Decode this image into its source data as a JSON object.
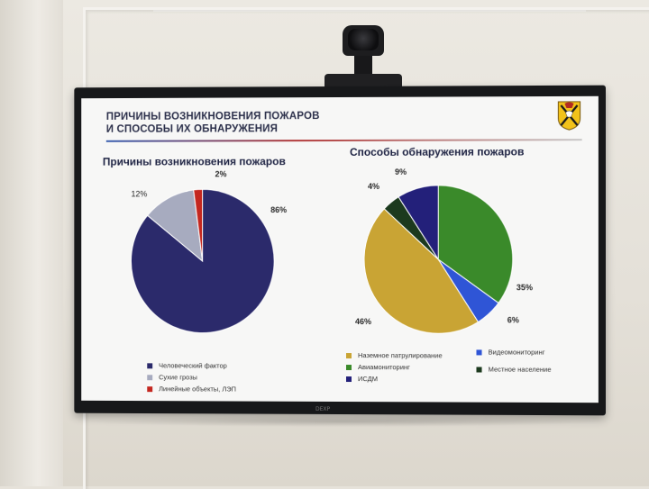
{
  "slide": {
    "title_line1": "ПРИЧИНЫ ВОЗНИКНОВЕНИЯ ПОЖАРОВ",
    "title_line2": "И СПОСОБЫ ИХ ОБНАРУЖЕНИЯ",
    "tv_brand": "DEXP"
  },
  "chart_data": [
    {
      "type": "pie",
      "title": "Причины возникновения пожаров",
      "categories": [
        "Человеческий фактор",
        "Сухие грозы",
        "Линейные объекты, ЛЭП"
      ],
      "values": [
        86,
        12,
        2
      ],
      "labels": [
        "86%",
        "12%",
        "2%"
      ],
      "colors": [
        "#2b2a6b",
        "#a7abbf",
        "#c4271f"
      ],
      "legend": "bottom-left"
    },
    {
      "type": "pie",
      "title": "Способы обнаружения пожаров",
      "categories": [
        "Авиамониторинг",
        "Видеомониторинг",
        "Наземное патрулирование",
        "Местное население",
        "ИСДМ"
      ],
      "values": [
        35,
        6,
        46,
        4,
        9
      ],
      "labels": [
        "35%",
        "6%",
        "46%",
        "4%",
        "9%"
      ],
      "colors": [
        "#3a8a2a",
        "#2f55d6",
        "#c9a434",
        "#1c3a1e",
        "#23207a"
      ],
      "legend_columns": [
        [
          "Наземное патрулирование",
          "Авиамониторинг",
          "ИСДМ"
        ],
        [
          "Видеомониторинг",
          "Местное население"
        ]
      ],
      "legend": "bottom"
    }
  ]
}
